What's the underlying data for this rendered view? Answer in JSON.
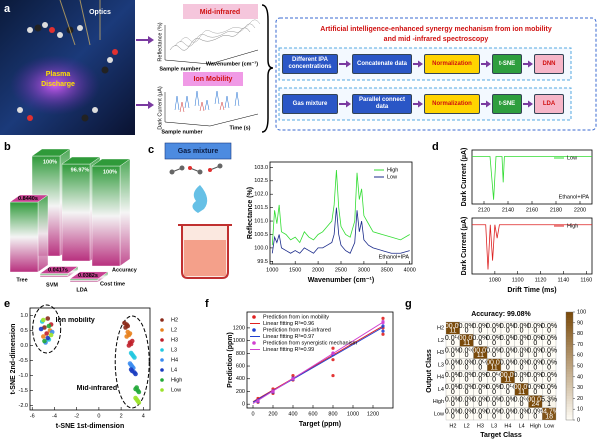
{
  "panel_labels": [
    "a",
    "b",
    "c",
    "d",
    "e",
    "f",
    "g"
  ],
  "panel_a": {
    "optics": "Optics",
    "plasma": [
      "Plasma",
      "Discharge"
    ],
    "mid_ir": {
      "label": "Mid-infrared",
      "y_label": "Reflectance (%)",
      "x_labels": [
        "Sample number",
        "Wavenumber (cm⁻¹)"
      ]
    },
    "ion": {
      "label": "Ion Mobility",
      "y_label": "Dark Current (μA)",
      "x_labels": [
        "Sample number",
        "Time (s)"
      ]
    },
    "flow": {
      "title": [
        "Artificial intelligence-enhanced synergy mechanism from ion mobility",
        "and mid -infrared spectroscopy"
      ],
      "rows": [
        [
          "Different IPA concentrations",
          "Concatenate data",
          "Normalization",
          "t-SNE",
          "DNN"
        ],
        [
          "Gas mixture",
          "Parallel connect data",
          "Normalization",
          "t-SNE",
          "LDA"
        ]
      ]
    }
  },
  "chart_data": [
    {
      "type": "bar3d",
      "categories": [
        "Tree",
        "SVM",
        "LDA"
      ],
      "series": [
        {
          "name": "Accuracy",
          "values": [
            100,
            96.97,
            100
          ],
          "value_labels": [
            "100%",
            "96.97%",
            "100%"
          ]
        },
        {
          "name": "Cost time",
          "values": [
            0.844,
            0.0417,
            0.0382
          ],
          "value_labels": [
            "0.8440s",
            "0.0417s",
            "0.0382s"
          ]
        }
      ],
      "colors": [
        "#2f9a3a",
        "#f4f4f4",
        "#b8307e"
      ]
    },
    {
      "type": "line",
      "title": "Gas mixture",
      "x_label": "Wavenumber (cm⁻¹)",
      "y_label": "Reflectance (%)",
      "annotation": "Ethanol+IPA",
      "legend": "upper-right",
      "x": [
        1000,
        1050,
        1100,
        1150,
        1200,
        1300,
        1400,
        1500,
        1600,
        1700,
        1800,
        1900,
        2000,
        2100,
        2200,
        2300,
        2350,
        2400,
        2450,
        2500,
        2600,
        2700,
        2800,
        2850,
        2900,
        2950,
        3000,
        3100,
        3200,
        3400,
        3600,
        3800,
        4000
      ],
      "series": [
        {
          "name": "High",
          "color": "#33dd33",
          "values": [
            100.1,
            101.4,
            100.9,
            101.6,
            100.6,
            100.5,
            100.3,
            100.4,
            100.2,
            100.6,
            100.4,
            100.3,
            100.5,
            100.6,
            100.8,
            101.0,
            101.6,
            102.9,
            101.5,
            100.8,
            100.5,
            100.4,
            101.0,
            102.8,
            101.8,
            102.2,
            101.2,
            100.9,
            100.6,
            100.5,
            100.4,
            100.3,
            100.5
          ]
        },
        {
          "name": "Low",
          "color": "#1a2a8a",
          "values": [
            99.8,
            100.4,
            100.2,
            100.5,
            100.0,
            99.9,
            99.8,
            99.9,
            99.8,
            100.0,
            99.9,
            99.8,
            100.0,
            100.0,
            100.1,
            100.2,
            100.5,
            101.5,
            100.5,
            100.1,
            99.9,
            99.8,
            100.2,
            101.4,
            100.6,
            101.0,
            100.3,
            100.1,
            100.0,
            99.9,
            99.8,
            99.8,
            99.9
          ]
        }
      ],
      "xlim": [
        950,
        4050
      ],
      "xticks": [
        1000,
        1500,
        2000,
        2500,
        3000,
        3500,
        4000
      ],
      "ylim": [
        99.4,
        103.2
      ],
      "yticks": [
        99.5,
        {
          "value": 100,
          "label": "100.0"
        },
        100.5,
        {
          "value": 101,
          "label": "101.0"
        },
        101.5,
        {
          "value": 102,
          "label": "102.0"
        },
        102.5,
        {
          "value": 103,
          "label": "103.0"
        }
      ]
    },
    {
      "type": "line",
      "y_label": "Dark Current (μA)",
      "annotation": "Ethanol+IPA",
      "legend": "upper-right",
      "x": [
        2110,
        2125,
        2128,
        2130,
        2132,
        2135,
        2136,
        2137,
        2140,
        2210
      ],
      "series": [
        {
          "name": "Low",
          "color": "#33dd33",
          "values": [
            0,
            0,
            -1,
            0,
            0,
            0,
            -0.6,
            0,
            0,
            0
          ]
        }
      ],
      "xlim": [
        2110,
        2210
      ],
      "xticks": [
        2120,
        2140,
        2160,
        2180,
        2200
      ],
      "ylim": [
        -1.1,
        0.15
      ]
    },
    {
      "type": "line",
      "y_label": "Dark Current (μA)",
      "x_label": "Drift Time (ms)",
      "legend": "upper-right",
      "x": [
        1060,
        1072,
        1074,
        1076,
        1078,
        1080,
        1082,
        1084,
        1165
      ],
      "series": [
        {
          "name": "High",
          "color": "#dd2222",
          "values": [
            0,
            0,
            -1,
            0,
            -0.8,
            0,
            -0.3,
            0,
            0
          ]
        }
      ],
      "xlim": [
        1060,
        1165
      ],
      "xticks": [
        1080,
        1100,
        1120,
        1140,
        1160
      ],
      "ylim": [
        -1.1,
        0.15
      ]
    },
    {
      "type": "scatter",
      "x_label": "t-SNE 1st-dimension",
      "y_label": "t-SNE 2nd-dimension",
      "annotations": [
        "Ion mobility",
        "Mid-infrared"
      ],
      "legend": "outside-right",
      "series": [
        {
          "name": "H2",
          "color": "#8b2a1a",
          "x": [
            -4.6,
            -4.9,
            2.3,
            2.5,
            2.4,
            2.6
          ],
          "values": [
            0.9,
            0.6,
            0.75,
            0.7,
            0.6,
            0.65
          ]
        },
        {
          "name": "L2",
          "color": "#e8821e",
          "x": [
            -4.4,
            -5.0,
            2.6,
            2.7,
            2.5,
            2.8
          ],
          "values": [
            0.5,
            0.3,
            0.45,
            0.35,
            0.3,
            0.4
          ]
        },
        {
          "name": "H3",
          "color": "#c0202a",
          "x": [
            -4.7,
            -4.3,
            2.8,
            2.9,
            2.7,
            3.0
          ],
          "values": [
            0.4,
            0.7,
            0.1,
            0.05,
            0.0,
            0.15
          ]
        },
        {
          "name": "L3",
          "color": "#22c8e0",
          "x": [
            -5.1,
            -4.5,
            3.0,
            3.1,
            2.9,
            3.2
          ],
          "values": [
            0.8,
            0.2,
            -0.3,
            -0.35,
            -0.25,
            -0.4
          ]
        },
        {
          "name": "H4",
          "color": "#3b8cf0",
          "x": [
            -4.8,
            -4.2,
            2.8,
            3.0,
            2.9,
            3.1
          ],
          "values": [
            0.1,
            0.45,
            -0.6,
            -0.7,
            -0.65,
            -0.75
          ]
        },
        {
          "name": "L4",
          "color": "#1a3cc0",
          "x": [
            -4.6,
            -5.2,
            2.9,
            3.2,
            3.0,
            3.3
          ],
          "values": [
            0.25,
            0.55,
            -0.8,
            -0.9,
            -0.85,
            -0.95
          ]
        },
        {
          "name": "High",
          "color": "#22a838",
          "x": [
            -4.5,
            -4.9,
            3.4,
            3.5,
            3.3,
            3.6
          ],
          "values": [
            0.65,
            0.15,
            -1.4,
            -1.5,
            -1.45,
            -1.55
          ]
        },
        {
          "name": "Low",
          "color": "#9be22a",
          "x": [
            -4.3,
            -5.0,
            3.3,
            3.5,
            3.4,
            3.6
          ],
          "values": [
            0.35,
            0.85,
            -1.75,
            -1.85,
            -1.8,
            -1.9
          ]
        }
      ],
      "xlim": [
        -6.2,
        4.6
      ],
      "xticks": [
        -6,
        -4,
        -2,
        0,
        2,
        4
      ],
      "ylim": [
        -2.15,
        1.25
      ],
      "yticks": [
        {
          "value": -2,
          "label": "-2.0"
        },
        -1.5,
        {
          "value": -1,
          "label": "-1.0"
        },
        -0.5,
        {
          "value": 0,
          "label": "0.0"
        },
        0.5,
        {
          "value": 1,
          "label": "1.0"
        }
      ]
    },
    {
      "type": "scatter",
      "x_label": "Target (ppm)",
      "y_label": "Prediction (ppm)",
      "legend": "upper-left",
      "series": [
        {
          "name": "Prediction from ion mobility",
          "color": "#e02020",
          "mode": "markers",
          "x": [
            50,
            50,
            200,
            200,
            400,
            400,
            800,
            800,
            800,
            1300,
            1300,
            1300
          ],
          "values": [
            30,
            90,
            170,
            240,
            380,
            450,
            700,
            880,
            450,
            1100,
            1350,
            1200
          ]
        },
        {
          "name": "Linear fitting R²=0.96",
          "color": "#e02020",
          "mode": "line",
          "x": [
            0,
            1300
          ],
          "values": [
            40,
            1230
          ]
        },
        {
          "name": "Prediction from mid-infrared",
          "color": "#2040d0",
          "mode": "markers",
          "x": [
            50,
            50,
            200,
            200,
            400,
            400,
            800,
            800,
            1300,
            1300
          ],
          "values": [
            60,
            40,
            210,
            190,
            410,
            390,
            800,
            780,
            1150,
            1230
          ]
        },
        {
          "name": "Linear fitting R²=0.97",
          "color": "#2040d0",
          "mode": "line",
          "x": [
            0,
            1300
          ],
          "values": [
            30,
            1210
          ]
        },
        {
          "name": "Prediction from synergistic mechanism",
          "color": "#d040d0",
          "mode": "markers",
          "x": [
            50,
            50,
            200,
            200,
            400,
            400,
            800,
            800,
            1300,
            1300
          ],
          "values": [
            50,
            55,
            200,
            205,
            400,
            398,
            795,
            805,
            1280,
            1300
          ]
        },
        {
          "name": "Linear fitting R²=0.99",
          "color": "#d040d0",
          "mode": "line",
          "x": [
            0,
            1300
          ],
          "values": [
            10,
            1290
          ]
        }
      ],
      "xlim": [
        -60,
        1400
      ],
      "xticks": [
        0,
        200,
        400,
        600,
        800,
        1000,
        1200
      ],
      "ylim": [
        -60,
        1450
      ],
      "yticks": [
        0,
        200,
        400,
        600,
        800,
        1000,
        1200
      ]
    },
    {
      "type": "heatmap",
      "title": "Accuracy: 99.08%",
      "x_label": "Target Class",
      "y_label": "Output Class",
      "categories": [
        "H2",
        "L2",
        "H3",
        "L3",
        "H4",
        "L4",
        "High",
        "Low"
      ],
      "percent": [
        [
          100,
          0,
          0,
          0,
          0,
          0,
          0,
          0
        ],
        [
          0,
          100,
          0,
          0,
          0,
          0,
          0,
          0
        ],
        [
          0,
          0,
          100,
          0,
          0,
          0,
          0,
          0
        ],
        [
          0,
          0,
          0,
          100,
          0,
          0,
          0,
          0
        ],
        [
          0,
          0,
          0,
          0,
          100,
          0,
          0,
          0
        ],
        [
          0,
          0,
          0,
          0,
          0,
          100,
          0,
          0
        ],
        [
          0,
          0,
          0,
          0,
          0,
          0,
          100,
          5.3
        ],
        [
          0,
          0,
          0,
          0,
          0,
          0,
          0,
          94.7
        ]
      ],
      "percent_labels": [
        [
          "100.0%",
          "0.0%",
          "0.0%",
          "0.0%",
          "0.0%",
          "0.0%",
          "0.0%",
          "0.0%"
        ],
        [
          "0.0%",
          "100.0%",
          "0.0%",
          "0.0%",
          "0.0%",
          "0.0%",
          "0.0%",
          "0.0%"
        ],
        [
          "0.0%",
          "0.0%",
          "100.0%",
          "0.0%",
          "0.0%",
          "0.0%",
          "0.0%",
          "0.0%"
        ],
        [
          "0.0%",
          "0.0%",
          "0.0%",
          "100.0%",
          "0.0%",
          "0.0%",
          "0.0%",
          "0.0%"
        ],
        [
          "0.0%",
          "0.0%",
          "0.0%",
          "0.0%",
          "100.0%",
          "0.0%",
          "0.0%",
          "0.0%"
        ],
        [
          "0.0%",
          "0.0%",
          "0.0%",
          "0.0%",
          "0.0%",
          "100.0%",
          "0.0%",
          "0.0%"
        ],
        [
          "0.0%",
          "0.0%",
          "0.0%",
          "0.0%",
          "0.0%",
          "0.0%",
          "100.0%",
          "5.3%"
        ],
        [
          "0.0%",
          "0.0%",
          "0.0%",
          "0.0%",
          "0.0%",
          "0.0%",
          "0.0%",
          "94.7%"
        ]
      ],
      "counts": [
        [
          11,
          0,
          0,
          0,
          0,
          0,
          0,
          0
        ],
        [
          0,
          11,
          0,
          0,
          0,
          0,
          0,
          0
        ],
        [
          0,
          0,
          11,
          0,
          0,
          0,
          0,
          0
        ],
        [
          0,
          0,
          0,
          11,
          0,
          0,
          0,
          0
        ],
        [
          0,
          0,
          0,
          0,
          11,
          0,
          0,
          0
        ],
        [
          0,
          0,
          0,
          0,
          0,
          11,
          0,
          0
        ],
        [
          0,
          0,
          0,
          0,
          0,
          0,
          24,
          1
        ],
        [
          0,
          0,
          0,
          0,
          0,
          0,
          0,
          18
        ]
      ],
      "colors": [
        "#fffdf6",
        "#7a4a0a"
      ],
      "cbar_lim": [
        0,
        100
      ],
      "cbar_ticks": [
        0,
        10,
        20,
        30,
        40,
        50,
        60,
        70,
        80,
        90,
        100
      ]
    }
  ]
}
